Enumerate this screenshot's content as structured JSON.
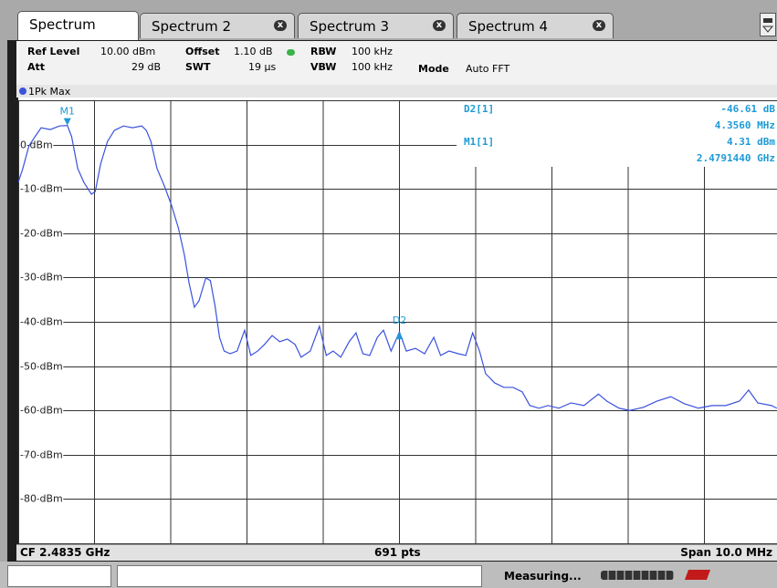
{
  "tabs": [
    "Spectrum",
    "Spectrum 2",
    "Spectrum 3",
    "Spectrum 4"
  ],
  "settings": {
    "row1": [
      [
        "Ref Level",
        "10.00 dBm"
      ],
      [
        "Offset",
        "1.10 dB"
      ],
      [
        "RBW",
        "100 kHz"
      ]
    ],
    "row2": [
      [
        "Att",
        "29 dB"
      ],
      [
        "SWT",
        "19 µs"
      ],
      [
        "VBW",
        "100 kHz"
      ],
      [
        "Mode",
        "Auto FFT"
      ]
    ]
  },
  "readouts": [
    {
      "label": "D2[1]",
      "level": "-46.61 dB",
      "freq": "4.3560 MHz"
    },
    {
      "label": "M1[1]",
      "level": "4.31 dBm",
      "freq": "2.4791440 GHz"
    }
  ],
  "footer": {
    "left": "CF 2.4835 GHz",
    "center": "691 pts",
    "right": "Span 10.0 MHz"
  },
  "status": "Measuring...",
  "chart_data": {
    "type": "line",
    "x": [
      2.4785,
      2.47856,
      2.47864,
      2.47872,
      2.4788,
      2.47892,
      2.47904,
      2.479144,
      2.4792,
      2.47928,
      2.47936,
      2.47946,
      2.47951,
      2.47958,
      2.47967,
      2.47976,
      2.47988,
      2.48,
      2.48012,
      2.48018,
      2.48024,
      2.48032,
      2.48042,
      2.48051,
      2.4806,
      2.48068,
      2.48074,
      2.48081,
      2.48087,
      2.48096,
      2.48102,
      2.48108,
      2.48114,
      2.4812,
      2.48128,
      2.48137,
      2.48147,
      2.48155,
      2.48164,
      2.48173,
      2.48183,
      2.48193,
      2.48203,
      2.48213,
      2.48221,
      2.48233,
      2.48245,
      2.48254,
      2.48263,
      2.48273,
      2.48284,
      2.48293,
      2.48302,
      2.48311,
      2.48321,
      2.48329,
      2.48339,
      2.4835,
      2.48359,
      2.48371,
      2.48383,
      2.48395,
      2.48404,
      2.48415,
      2.48427,
      2.48437,
      2.48446,
      2.48455,
      2.48463,
      2.48475,
      2.48487,
      2.48499,
      2.48511,
      2.48521,
      2.48533,
      2.48545,
      2.48559,
      2.48575,
      2.48592,
      2.48611,
      2.48622,
      2.48638,
      2.48652,
      2.4867,
      2.48688,
      2.48706,
      2.48724,
      2.48742,
      2.4876,
      2.48778,
      2.48796,
      2.48808,
      2.4882,
      2.48838,
      2.48845
    ],
    "series": [
      {
        "name": "1Pk Max",
        "color": "#3a52dd",
        "values": [
          -8.5,
          -5.4,
          -0.3,
          1.8,
          3.8,
          3.4,
          4.2,
          4.31,
          1.8,
          -5.4,
          -8.5,
          -11.2,
          -10.6,
          -4.4,
          0.7,
          3.2,
          4.2,
          3.8,
          4.2,
          3.2,
          0.7,
          -5.4,
          -9.5,
          -13.7,
          -18.8,
          -25,
          -31.2,
          -36.7,
          -35.3,
          -30.1,
          -30.7,
          -36.3,
          -43.5,
          -46.6,
          -47.2,
          -46.6,
          -41.9,
          -47.6,
          -46.6,
          -45.1,
          -43.1,
          -44.5,
          -43.9,
          -45.1,
          -48,
          -46.6,
          -41,
          -47.6,
          -46.6,
          -48,
          -44.5,
          -42.5,
          -47.2,
          -47.6,
          -43.5,
          -41.9,
          -46.6,
          -42.3,
          -46.6,
          -46,
          -47.2,
          -43.5,
          -47.6,
          -46.6,
          -47.2,
          -47.6,
          -42.5,
          -46.6,
          -51.7,
          -53.8,
          -54.8,
          -54.8,
          -55.8,
          -58.9,
          -59.5,
          -58.9,
          -59.5,
          -58.3,
          -58.9,
          -56.3,
          -57.9,
          -59.5,
          -60,
          -59.3,
          -57.9,
          -56.9,
          -58.5,
          -59.5,
          -58.9,
          -58.9,
          -57.9,
          -55.4,
          -58.3,
          -58.9,
          -59.5
        ]
      }
    ],
    "markers": [
      {
        "name": "M1",
        "x": 2.479144,
        "value": 4.31,
        "direction": "down"
      },
      {
        "name": "D2",
        "x": 2.4835,
        "value": -42.3,
        "direction": "up"
      }
    ],
    "xlim": [
      2.4785,
      2.4885
    ],
    "ylim": [
      -90,
      10
    ],
    "yticks": [
      {
        "value": 0,
        "label": "0 dBm"
      },
      {
        "value": -10,
        "label": "-10 dBm"
      },
      {
        "value": -20,
        "label": "-20 dBm"
      },
      {
        "value": -30,
        "label": "-30 dBm"
      },
      {
        "value": -40,
        "label": "-40 dBm"
      },
      {
        "value": -50,
        "label": "-50 dBm"
      },
      {
        "value": -60,
        "label": "-60 dBm"
      },
      {
        "value": -70,
        "label": "-70 dBm"
      },
      {
        "value": -80,
        "label": "-80 dBm"
      }
    ],
    "grid": true
  }
}
